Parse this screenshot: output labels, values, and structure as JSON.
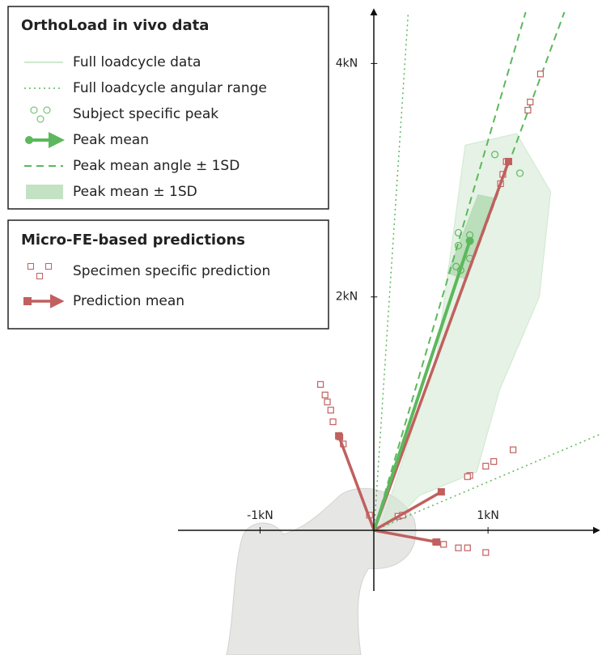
{
  "chart_data": {
    "type": "vector",
    "xlim": [
      -1.72,
      2.0
    ],
    "ylim": [
      -0.52,
      4.44
    ],
    "xticks": [
      {
        "value": -1,
        "label": "-1kN"
      },
      {
        "value": 1,
        "label": "1kN"
      }
    ],
    "yticks": [
      {
        "value": 2,
        "label": "2kN"
      },
      {
        "value": 4,
        "label": "4kN"
      }
    ],
    "groups": [
      {
        "title": "OrthoLoad in vivo data",
        "series": [
          {
            "name": "Full loadcycle data",
            "style": "loop",
            "color": "#cfe8cf",
            "x": [
              0.05,
              0.55,
              0.8,
              1.25,
              1.55,
              1.45,
              1.1,
              0.9,
              0.4,
              0.15
            ],
            "y": [
              0.0,
              1.5,
              3.3,
              3.4,
              2.9,
              2.0,
              1.2,
              0.5,
              0.3,
              0.05
            ]
          },
          {
            "name": "Full loadcycle angular range",
            "style": "dotted-ray",
            "color": "#5cb85c",
            "x": [
              0.3,
              2.0
            ],
            "y": [
              4.44,
              0.83
            ]
          },
          {
            "name": "Subject specific peak",
            "style": "circles",
            "color": "#5cb85c",
            "x": [
              1.06,
              1.28,
              0.74,
              0.84,
              0.74,
              0.84,
              0.72,
              0.76
            ],
            "y": [
              3.22,
              3.06,
              2.55,
              2.53,
              2.44,
              2.33,
              2.26,
              2.23
            ]
          },
          {
            "name": "Peak mean",
            "style": "arrow-dot",
            "color": "#5cb85c",
            "x": [
              0.84
            ],
            "y": [
              2.48
            ]
          },
          {
            "name": "Peak mean angle ± 1SD",
            "style": "dashed-ray",
            "color": "#5cb85c",
            "x": [
              1.33,
              1.67
            ],
            "y": [
              4.44,
              4.44
            ]
          },
          {
            "name": "Peak mean ± 1SD",
            "style": "band",
            "color": "#a9d6a9",
            "x": [
              0.64,
              0.8,
              1.06,
              0.91
            ],
            "y": [
              2.2,
              2.15,
              2.85,
              2.88
            ]
          }
        ]
      },
      {
        "title": "Micro-FE-based predictions",
        "series": [
          {
            "name": "Specimen specific prediction",
            "style": "squares",
            "color": "#c0605f",
            "x": [
              1.46,
              1.37,
              1.35,
              1.16,
              1.13,
              1.11,
              -0.47,
              -0.43,
              -0.41,
              -0.38,
              -0.36,
              -0.3,
              -0.27,
              1.22,
              1.05,
              0.98,
              0.84,
              0.82,
              0.59,
              0.98,
              0.82,
              0.74,
              0.61,
              0.54,
              -0.04,
              0.21,
              0.25
            ],
            "y": [
              3.91,
              3.67,
              3.6,
              3.16,
              3.05,
              2.97,
              1.25,
              1.16,
              1.1,
              1.03,
              0.93,
              0.8,
              0.74,
              0.69,
              0.59,
              0.55,
              0.47,
              0.46,
              0.33,
              -0.19,
              -0.15,
              -0.15,
              -0.12,
              -0.1,
              0.13,
              0.12,
              0.13
            ]
          },
          {
            "name": "Prediction mean",
            "style": "arrow-square",
            "color": "#c0605f",
            "x": [
              1.18,
              -0.31,
              0.59,
              0.55
            ],
            "y": [
              3.16,
              0.81,
              0.33,
              -0.1
            ]
          }
        ]
      }
    ]
  }
}
